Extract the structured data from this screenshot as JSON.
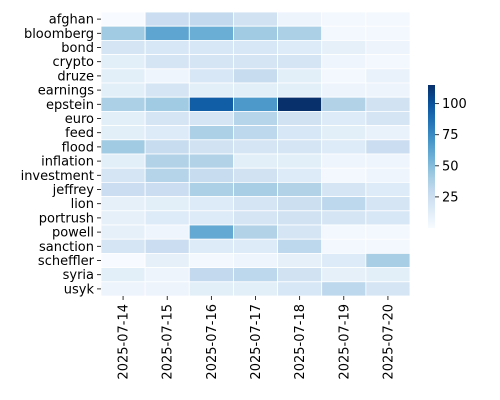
{
  "chart_data": {
    "type": "heatmap",
    "rows": [
      "afghan",
      "bloomberg",
      "bond",
      "crypto",
      "druze",
      "earnings",
      "epstein",
      "euro",
      "feed",
      "flood",
      "inflation",
      "investment",
      "jeffrey",
      "lion",
      "portrush",
      "powell",
      "sanction",
      "scheffler",
      "syria",
      "usyk"
    ],
    "columns": [
      "2025-07-14",
      "2025-07-15",
      "2025-07-16",
      "2025-07-17",
      "2025-07-18",
      "2025-07-19",
      "2025-07-20"
    ],
    "values": [
      [
        0,
        26,
        30,
        22,
        6,
        3,
        3
      ],
      [
        42,
        62,
        58,
        42,
        38,
        3,
        3
      ],
      [
        20,
        18,
        18,
        18,
        15,
        10,
        6
      ],
      [
        12,
        20,
        20,
        20,
        20,
        5,
        3
      ],
      [
        12,
        5,
        18,
        28,
        12,
        3,
        8
      ],
      [
        12,
        20,
        12,
        12,
        12,
        6,
        6
      ],
      [
        38,
        42,
        95,
        68,
        115,
        36,
        22
      ],
      [
        12,
        20,
        20,
        34,
        22,
        15,
        20
      ],
      [
        12,
        15,
        38,
        32,
        18,
        12,
        8
      ],
      [
        42,
        28,
        22,
        20,
        20,
        15,
        26
      ],
      [
        12,
        36,
        36,
        12,
        12,
        5,
        5
      ],
      [
        20,
        35,
        28,
        22,
        15,
        3,
        5
      ],
      [
        26,
        26,
        38,
        40,
        36,
        20,
        15
      ],
      [
        10,
        12,
        15,
        20,
        25,
        32,
        20
      ],
      [
        10,
        15,
        15,
        20,
        22,
        20,
        18
      ],
      [
        10,
        5,
        60,
        36,
        20,
        3,
        3
      ],
      [
        20,
        26,
        15,
        15,
        32,
        3,
        3
      ],
      [
        0,
        10,
        3,
        5,
        10,
        15,
        40
      ],
      [
        12,
        6,
        30,
        32,
        22,
        10,
        12
      ],
      [
        6,
        6,
        12,
        12,
        18,
        32,
        20
      ]
    ],
    "colorbar": {
      "ticks": [
        25,
        50,
        75,
        100
      ],
      "min": 0,
      "max": 115,
      "colormap": "Blues"
    },
    "xlabel": "",
    "ylabel": ""
  }
}
